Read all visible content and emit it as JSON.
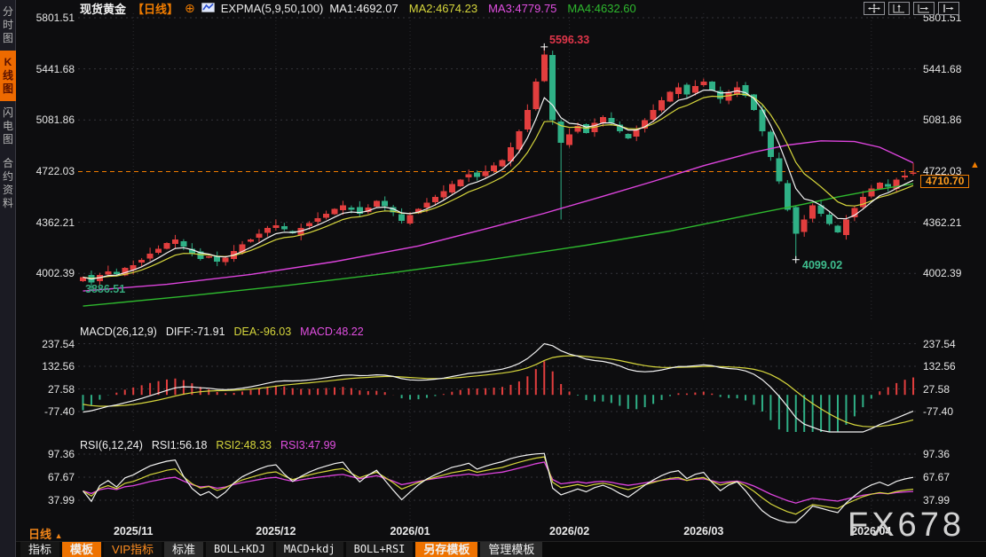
{
  "window_title": "现货黄金 日线 K线图",
  "colors": {
    "accent_orange": "#f07c00",
    "bull_red": "#e23e3e",
    "bear_green": "#2fb086",
    "ma1_white": "#f2f2f2",
    "ma2_yellow": "#d6d63c",
    "ma3_magenta": "#dd44dd",
    "ma4_green": "#2eb82e",
    "grid": "#34343a",
    "annotation_red": "#e0364a",
    "annotation_green": "#3fbe8f"
  },
  "icons": {
    "plus_circle": "⊕",
    "up_triangle": "▲",
    "top_right": [
      "crosshair-icon",
      "axis-zoom-vertical-icon",
      "axis-zoom-horizontal-icon",
      "shift-right-icon"
    ]
  },
  "sidebar": {
    "tabs": [
      {
        "label": "分时图",
        "active": false
      },
      {
        "label": "K线图",
        "active": true
      },
      {
        "label": "闪电图",
        "active": false
      },
      {
        "label": "合约资料",
        "active": false
      }
    ]
  },
  "header": {
    "symbol": "现货黄金",
    "period": "【日线】",
    "plus_icon": "⊕",
    "indicator_label": "EXPMA(5,9,50,100)",
    "ma_legend": [
      {
        "text": "MA1:4692.07",
        "color": "#f2f2f2"
      },
      {
        "text": "MA2:4674.23",
        "color": "#d6d63c"
      },
      {
        "text": "MA3:4779.75",
        "color": "#e24fe2"
      },
      {
        "text": "MA4:4632.60",
        "color": "#2eb82e"
      }
    ]
  },
  "price_axis": {
    "labels": [
      "5801.51",
      "5441.68",
      "5081.86",
      "4722.03",
      "4362.21",
      "4002.39"
    ],
    "values": [
      5801.51,
      5441.68,
      5081.86,
      4722.03,
      4362.21,
      4002.39
    ]
  },
  "price_tag": {
    "value": "4710.70",
    "arrow": "▲"
  },
  "annotations": {
    "high_label": "5596.33",
    "low_label": "4099.02",
    "start_low_label": "3886.51"
  },
  "macd_panel": {
    "title": "MACD(26,12,9)",
    "diff_label": "DIFF:-71.91",
    "dea_label": "DEA:-96.03",
    "macd_label": "MACD:48.22",
    "axis_labels": [
      "237.54",
      "132.56",
      "27.58",
      "-77.40"
    ],
    "axis_values": [
      237.54,
      132.56,
      27.58,
      -77.4
    ]
  },
  "rsi_panel": {
    "title": "RSI(6,12,24)",
    "rsi1_label": "RSI1:56.18",
    "rsi2_label": "RSI2:48.33",
    "rsi3_label": "RSI3:47.99",
    "axis_labels": [
      "97.36",
      "67.67",
      "37.99"
    ],
    "axis_values": [
      97.36,
      67.67,
      37.99
    ]
  },
  "timeline": {
    "period_label": "日线",
    "period_arrow": "▲",
    "dates": [
      "2025/11",
      "2025/12",
      "2026/01",
      "2026/02",
      "2026/03",
      "2026/04"
    ]
  },
  "toolbar": {
    "buttons": [
      {
        "label": "指标",
        "style": "dark"
      },
      {
        "label": "模板",
        "style": "orange"
      },
      {
        "label": "VIP指标",
        "style": "vip"
      },
      {
        "label": "标准",
        "style": "cell"
      },
      {
        "label": "BOLL+KDJ",
        "style": "mono"
      },
      {
        "label": "MACD+kdj",
        "style": "mono"
      },
      {
        "label": "BOLL+RSI",
        "style": "mono"
      },
      {
        "label": "另存模板",
        "style": "orange"
      },
      {
        "label": "管理模板",
        "style": "cell"
      }
    ]
  },
  "watermark": "FX678",
  "chart_data": {
    "type": "candlestick",
    "title": "现货黄金 日线",
    "legend": [
      "MA1(5)",
      "MA2(9)",
      "MA3(50)",
      "MA4(100)"
    ],
    "y_ticks": [
      5801.51,
      5441.68,
      5081.86,
      4722.03,
      4362.21,
      4002.39
    ],
    "x_ticks": [
      {
        "label": "2025/11",
        "i": 6
      },
      {
        "label": "2025/12",
        "i": 23
      },
      {
        "label": "2026/01",
        "i": 39
      },
      {
        "label": "2026/02",
        "i": 58
      },
      {
        "label": "2026/03",
        "i": 74
      },
      {
        "label": "2026/04",
        "i": 94
      }
    ],
    "closes": [
      3975,
      3938,
      3992,
      4016,
      3996,
      4042,
      4061,
      4096,
      4142,
      4176,
      4216,
      4241,
      4192,
      4141,
      4104,
      4121,
      4086,
      4112,
      4161,
      4206,
      4242,
      4281,
      4322,
      4341,
      4312,
      4286,
      4321,
      4356,
      4391,
      4421,
      4456,
      4481,
      4451,
      4421,
      4466,
      4512,
      4476,
      4431,
      4372,
      4411,
      4456,
      4501,
      4541,
      4581,
      4631,
      4661,
      4701,
      4681,
      4721,
      4761,
      4801,
      4891,
      5001,
      5151,
      5351,
      5541,
      5081,
      4921,
      4981,
      5041,
      4991,
      5061,
      5101,
      5061,
      5001,
      4951,
      5011,
      5081,
      5151,
      5221,
      5281,
      5311,
      5261,
      5321,
      5351,
      5291,
      5231,
      5281,
      5311,
      5251,
      5151,
      5001,
      4821,
      4651,
      4451,
      4281,
      4381,
      4481,
      4421,
      4351,
      4291,
      4381,
      4461,
      4541,
      4601,
      4641,
      4611,
      4661,
      4691,
      4710.7
    ],
    "extremes": {
      "1": {
        "low": 3886.51
      },
      "55": {
        "high": 5596.33
      },
      "57": {
        "low": 4381
      },
      "85": {
        "low": 4099.02
      },
      "99": {
        "high": 4778
      }
    },
    "last_price": 4710.7,
    "high_annotation": {
      "i": 55,
      "price": 5596.33
    },
    "low_annotation": {
      "i": 85,
      "price": 4099.02
    },
    "start_low_annotation": {
      "price": 3886.51
    },
    "ma50": [
      [
        0,
        3878
      ],
      [
        10,
        3925
      ],
      [
        20,
        3995
      ],
      [
        30,
        4085
      ],
      [
        40,
        4195
      ],
      [
        48,
        4315
      ],
      [
        55,
        4425
      ],
      [
        62,
        4545
      ],
      [
        68,
        4650
      ],
      [
        74,
        4760
      ],
      [
        80,
        4855
      ],
      [
        84,
        4905
      ],
      [
        88,
        4935
      ],
      [
        92,
        4930
      ],
      [
        95,
        4890
      ],
      [
        99,
        4780
      ]
    ],
    "ma100": [
      [
        0,
        3772
      ],
      [
        12,
        3840
      ],
      [
        24,
        3915
      ],
      [
        36,
        4000
      ],
      [
        48,
        4095
      ],
      [
        60,
        4200
      ],
      [
        70,
        4300
      ],
      [
        80,
        4420
      ],
      [
        86,
        4490
      ],
      [
        90,
        4540
      ],
      [
        94,
        4585
      ],
      [
        99,
        4633
      ]
    ],
    "indicators": {
      "expma": [
        5,
        9,
        50,
        100
      ],
      "macd_params": [
        26,
        12,
        9
      ],
      "rsi_params": [
        6,
        12,
        24
      ]
    },
    "macd_values": {
      "diff": -71.91,
      "dea": -96.03,
      "macd": 48.22
    },
    "rsi_values": {
      "rsi1": 56.18,
      "rsi2": 48.33,
      "rsi3": 47.99
    }
  }
}
